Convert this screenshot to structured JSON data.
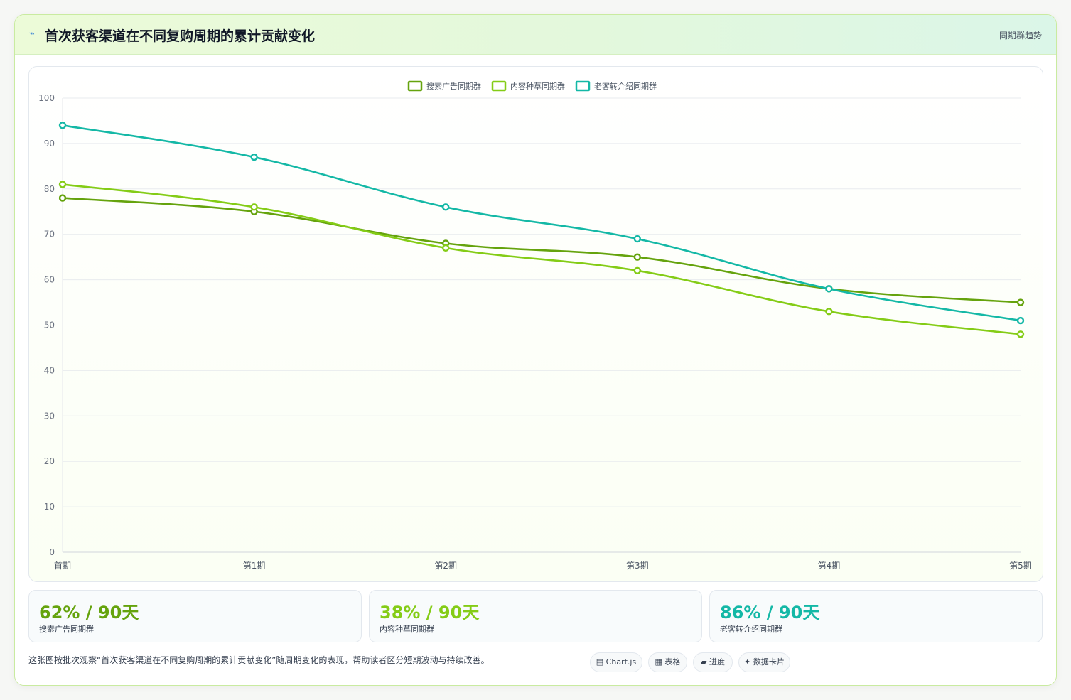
{
  "header": {
    "icon": "⌁",
    "title": "首次获客渠道在不同复购周期的累计贡献变化",
    "tag": "同期群趋势"
  },
  "chart_data": {
    "type": "line",
    "categories": [
      "首期",
      "第1期",
      "第2期",
      "第3期",
      "第4期",
      "第5期"
    ],
    "series": [
      {
        "name": "搜索广告同期群",
        "color": "#65a30d",
        "values": [
          78,
          75,
          68,
          65,
          58,
          55
        ]
      },
      {
        "name": "内容种草同期群",
        "color": "#84cc16",
        "values": [
          81,
          76,
          67,
          62,
          53,
          48
        ]
      },
      {
        "name": "老客转介绍同期群",
        "color": "#14b8a6",
        "values": [
          94,
          87,
          76,
          69,
          58,
          51
        ]
      }
    ],
    "ylim": [
      0,
      100
    ],
    "yticks": [
      "0",
      "10",
      "20",
      "30",
      "40",
      "50",
      "60",
      "70",
      "80",
      "90",
      "100"
    ],
    "grid": true,
    "legend": "top-center"
  },
  "stats": [
    {
      "value": "62% / 90天",
      "label": "搜索广告同期群",
      "color": "#65a30d"
    },
    {
      "value": "38% / 90天",
      "label": "内容种草同期群",
      "color": "#84cc16"
    },
    {
      "value": "86% / 90天",
      "label": "老客转介绍同期群",
      "color": "#14b8a6"
    }
  ],
  "note": "这张图按批次观察“首次获客渠道在不同复购周期的累计贡献变化”随周期变化的表现，帮助读者区分短期波动与持续改善。",
  "chips": [
    "▤ Chart.js",
    "▦ 表格",
    "▰ 进度",
    "✦ 数据卡片"
  ]
}
